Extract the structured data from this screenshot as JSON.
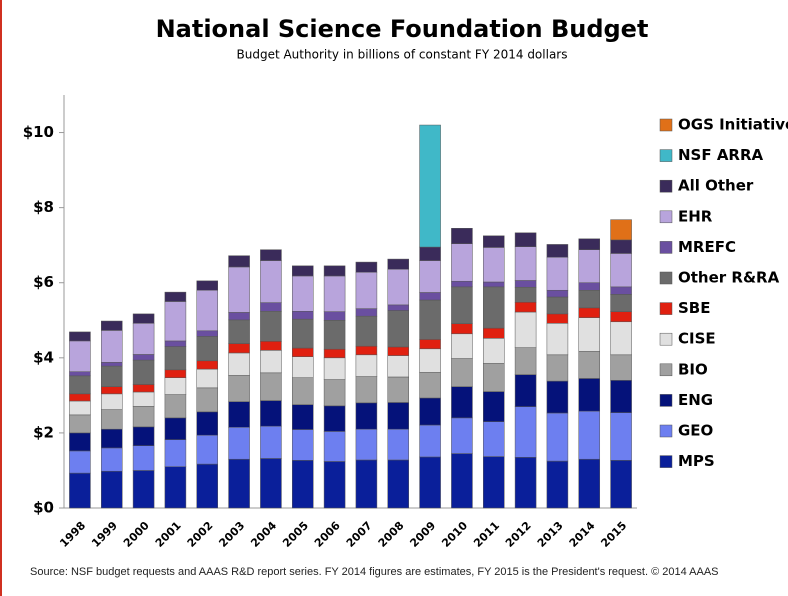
{
  "chart_data": {
    "type": "stacked_bar",
    "title": "National Science Foundation Budget",
    "subtitle": "Budget Authority in billions of constant FY 2014 dollars",
    "source": "Source: NSF budget requests and AAAS R&D report series. FY 2014 figures are estimates,  FY 2015 is the President's request. © 2014 AAAS",
    "categories": [
      "1998",
      "1999",
      "2000",
      "2001",
      "2002",
      "2003",
      "2004",
      "2005",
      "2006",
      "2007",
      "2008",
      "2009",
      "2010",
      "2011",
      "2012",
      "2013",
      "2014",
      "2015"
    ],
    "ylim": [
      0,
      11
    ],
    "yticks": [
      {
        "value": 0,
        "label": "$0"
      },
      {
        "value": 2,
        "label": "$2"
      },
      {
        "value": 4,
        "label": "$4"
      },
      {
        "value": 6,
        "label": "$6"
      },
      {
        "value": 8,
        "label": "$8"
      },
      {
        "value": 10,
        "label": "$10"
      }
    ],
    "series": [
      {
        "name": "MPS",
        "color": "#0a1f9a",
        "values": [
          0.93,
          0.98,
          1.0,
          1.1,
          1.17,
          1.3,
          1.32,
          1.27,
          1.24,
          1.28,
          1.28,
          1.36,
          1.45,
          1.37,
          1.35,
          1.25,
          1.3,
          1.27
        ]
      },
      {
        "name": "GEO",
        "color": "#6d7ff0",
        "values": [
          0.59,
          0.62,
          0.66,
          0.72,
          0.77,
          0.85,
          0.86,
          0.82,
          0.8,
          0.82,
          0.82,
          0.85,
          0.95,
          0.93,
          1.35,
          1.28,
          1.28,
          1.27
        ]
      },
      {
        "name": "ENG",
        "color": "#05127a",
        "values": [
          0.48,
          0.5,
          0.5,
          0.58,
          0.62,
          0.68,
          0.68,
          0.66,
          0.68,
          0.7,
          0.71,
          0.72,
          0.83,
          0.8,
          0.85,
          0.85,
          0.87,
          0.86
        ]
      },
      {
        "name": "BIO",
        "color": "#a0a0a0",
        "values": [
          0.48,
          0.52,
          0.55,
          0.62,
          0.64,
          0.7,
          0.74,
          0.72,
          0.7,
          0.7,
          0.68,
          0.68,
          0.75,
          0.75,
          0.72,
          0.7,
          0.72,
          0.68
        ]
      },
      {
        "name": "CISE",
        "color": "#e0e0e0",
        "values": [
          0.37,
          0.42,
          0.38,
          0.45,
          0.5,
          0.6,
          0.6,
          0.56,
          0.58,
          0.58,
          0.57,
          0.63,
          0.66,
          0.67,
          0.95,
          0.84,
          0.9,
          0.88
        ]
      },
      {
        "name": "SBE",
        "color": "#e02010",
        "values": [
          0.19,
          0.19,
          0.2,
          0.21,
          0.22,
          0.25,
          0.24,
          0.23,
          0.23,
          0.23,
          0.23,
          0.25,
          0.27,
          0.27,
          0.26,
          0.25,
          0.26,
          0.27
        ]
      },
      {
        "name": "Other R&RA",
        "color": "#6b6b6b",
        "values": [
          0.48,
          0.55,
          0.65,
          0.62,
          0.65,
          0.63,
          0.8,
          0.77,
          0.77,
          0.8,
          0.97,
          1.05,
          0.98,
          1.1,
          0.4,
          0.45,
          0.47,
          0.46
        ]
      },
      {
        "name": "MREFC",
        "color": "#6a4fa0",
        "values": [
          0.11,
          0.1,
          0.15,
          0.15,
          0.15,
          0.2,
          0.23,
          0.21,
          0.23,
          0.2,
          0.15,
          0.2,
          0.15,
          0.13,
          0.18,
          0.18,
          0.2,
          0.2
        ]
      },
      {
        "name": "EHR",
        "color": "#b8a4dc",
        "values": [
          0.82,
          0.85,
          0.83,
          1.05,
          1.08,
          1.21,
          1.12,
          0.94,
          0.95,
          0.97,
          0.95,
          0.85,
          1.0,
          0.92,
          0.9,
          0.88,
          0.88,
          0.89
        ]
      },
      {
        "name": "All Other",
        "color": "#3a2b5a",
        "values": [
          0.24,
          0.25,
          0.25,
          0.25,
          0.25,
          0.3,
          0.29,
          0.27,
          0.27,
          0.27,
          0.27,
          0.36,
          0.41,
          0.31,
          0.37,
          0.34,
          0.29,
          0.36
        ]
      },
      {
        "name": "NSF ARRA",
        "color": "#40b8c8",
        "values": [
          null,
          null,
          null,
          null,
          null,
          null,
          null,
          null,
          null,
          null,
          null,
          3.25,
          null,
          null,
          null,
          null,
          null,
          null
        ]
      },
      {
        "name": "OGS Initiative",
        "color": "#e07018",
        "values": [
          null,
          null,
          null,
          null,
          null,
          null,
          null,
          null,
          null,
          null,
          null,
          null,
          null,
          null,
          null,
          null,
          null,
          0.54
        ]
      }
    ]
  }
}
